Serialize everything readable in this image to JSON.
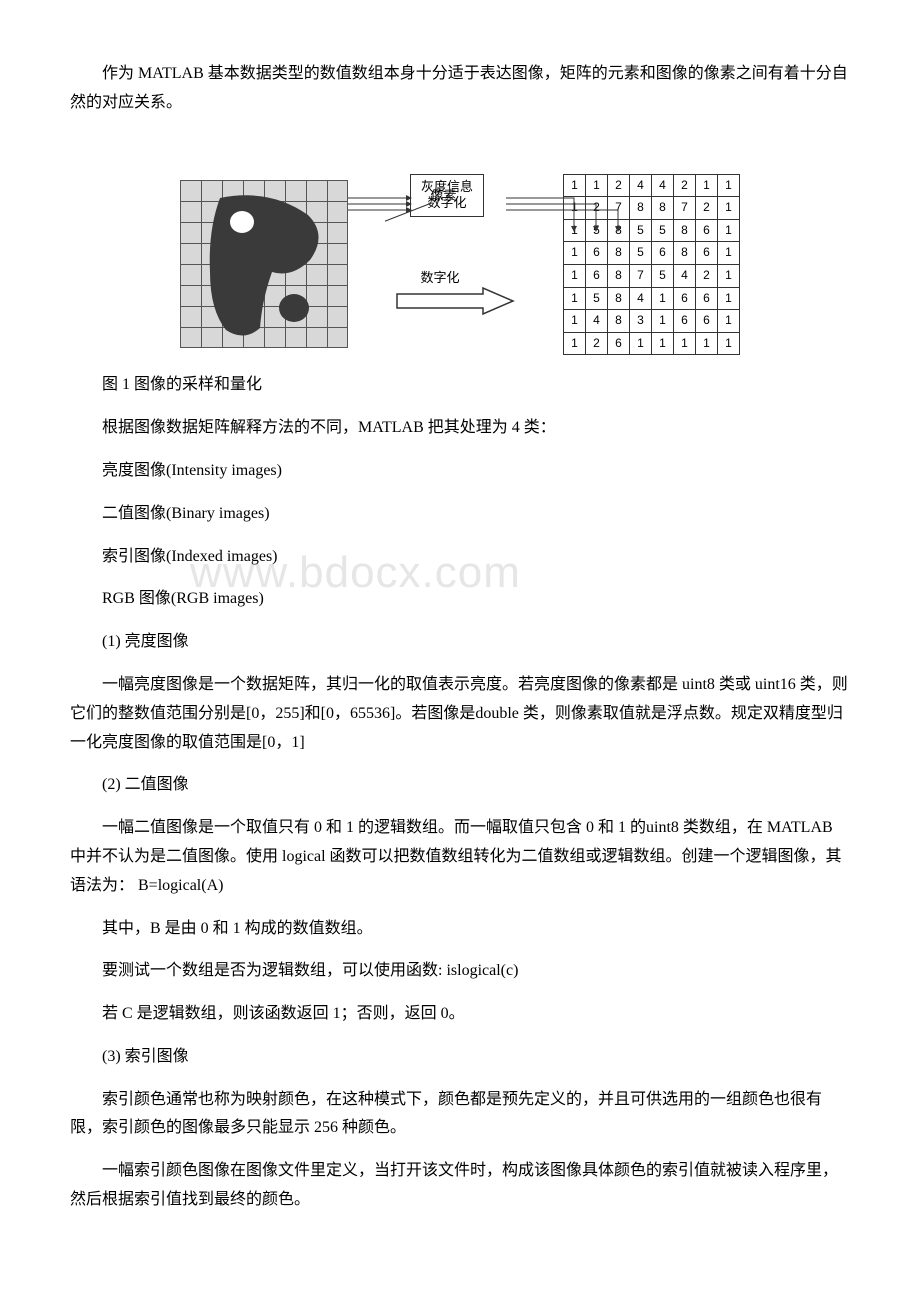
{
  "intro": "作为 MATLAB 基本数据类型的数值数组本身十分适于表达图像，矩阵的元素和图像的像素之间有着十分自然的对应关系。",
  "figure": {
    "box_line1": "灰度信息",
    "box_line2": "数字化",
    "pixel_label": "像素",
    "digitize_label": "数字化",
    "caption": "图 1 图像的采样和量化",
    "matrix": {
      "columns": 8,
      "rows": [
        [
          1,
          1,
          2,
          4,
          4,
          2,
          1,
          1
        ],
        [
          1,
          2,
          7,
          8,
          8,
          7,
          2,
          1
        ],
        [
          1,
          5,
          8,
          5,
          5,
          8,
          6,
          1
        ],
        [
          1,
          6,
          8,
          5,
          6,
          8,
          6,
          1
        ],
        [
          1,
          6,
          8,
          7,
          5,
          4,
          2,
          1
        ],
        [
          1,
          5,
          8,
          4,
          1,
          6,
          6,
          1
        ],
        [
          1,
          4,
          8,
          3,
          1,
          6,
          6,
          1
        ],
        [
          1,
          2,
          6,
          1,
          1,
          1,
          1,
          1
        ]
      ]
    },
    "colors": {
      "grid_bg": "#d8d8d8",
      "grid_line": "#555555",
      "blob_dark": "#3a3a3a",
      "blob_hole": "#ffffff",
      "table_border": "#333333"
    }
  },
  "classify_intro": "根据图像数据矩阵解释方法的不同，MATLAB 把其处理为 4 类：",
  "types": {
    "t1": "亮度图像(Intensity images)",
    "t2": "二值图像(Binary images)",
    "t3": "索引图像(Indexed images)",
    "t4": "RGB 图像(RGB images)"
  },
  "sections": {
    "s1_title": "(1) 亮度图像",
    "s1_body": "一幅亮度图像是一个数据矩阵，其归一化的取值表示亮度。若亮度图像的像素都是 uint8 类或 uint16 类，则它们的整数值范围分别是[0，255]和[0，65536]。若图像是double 类，则像素取值就是浮点数。规定双精度型归一化亮度图像的取值范围是[0，1]",
    "s2_title": "(2) 二值图像",
    "s2_body": "一幅二值图像是一个取值只有 0 和 1 的逻辑数组。而一幅取值只包含 0 和 1 的uint8 类数组，在 MATLAB 中并不认为是二值图像。使用 logical 函数可以把数值数组转化为二值数组或逻辑数组。创建一个逻辑图像，其语法为： B=logical(A)",
    "s2_p2": "其中，B 是由 0 和 1 构成的数值数组。",
    "s2_p3": "要测试一个数组是否为逻辑数组，可以使用函数: islogical(c)",
    "s2_p4": "若 C 是逻辑数组，则该函数返回 1；否则，返回 0。",
    "s3_title": "(3) 索引图像",
    "s3_body": "索引颜色通常也称为映射颜色，在这种模式下，颜色都是预先定义的，并且可供选用的一组颜色也很有限，索引颜色的图像最多只能显示 256 种颜色。",
    "s3_p2": "一幅索引颜色图像在图像文件里定义，当打开该文件时，构成该图像具体颜色的索引值就被读入程序里，然后根据索引值找到最终的颜色。"
  },
  "watermark": "www.bdocx.com"
}
